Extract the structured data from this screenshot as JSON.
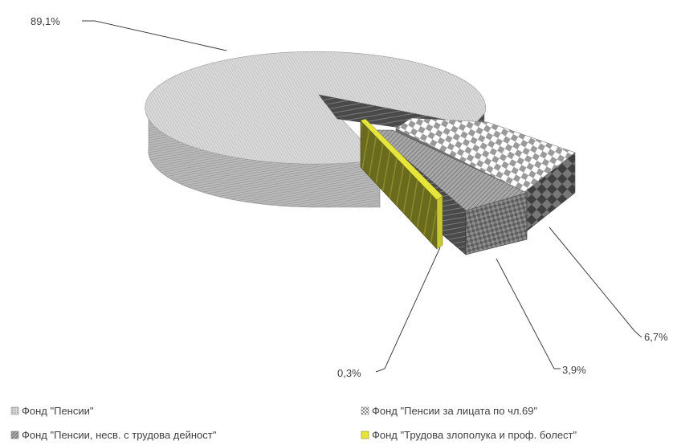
{
  "chart_data": {
    "type": "pie",
    "style": "3d-exploded",
    "legend_position": "bottom",
    "categories": [
      "Фонд \"Пенсии\"",
      "Фонд \"Пенсии за лицата по чл.69\"",
      "Фонд \"Пенсии, несв. с трудова дейност\"",
      "Фонд \"Трудова злополука и проф. болест\""
    ],
    "values": [
      89.1,
      6.7,
      3.9,
      0.3
    ],
    "value_labels": [
      "89,1%",
      "6,7%",
      "3,9%",
      "0,3%"
    ],
    "colors": [
      "#cfcfcf",
      "#9a9a9a",
      "#7c7c7c",
      "#b5b52a"
    ]
  }
}
